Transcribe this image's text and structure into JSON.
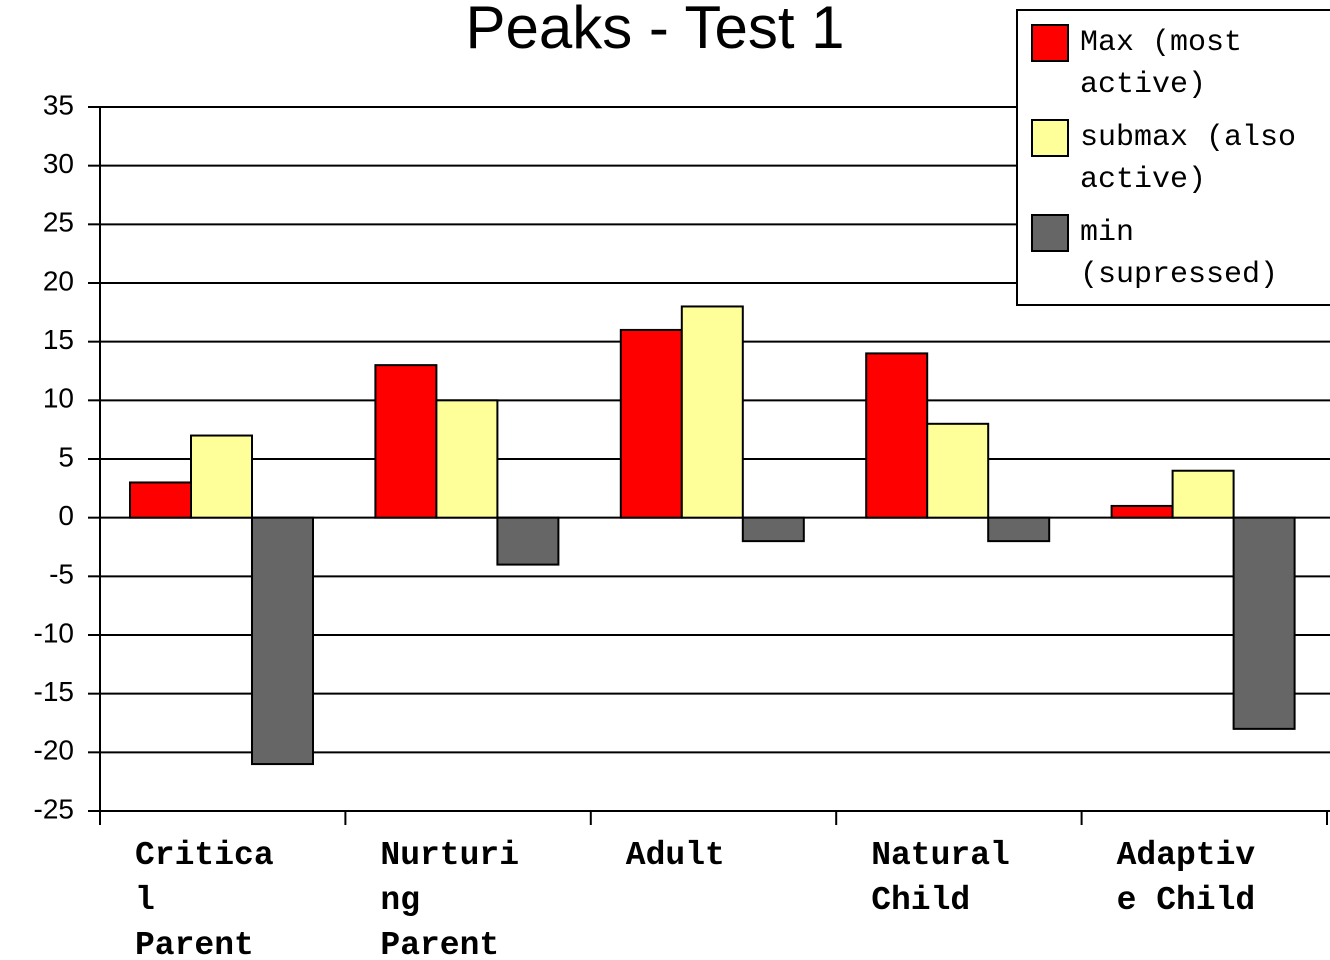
{
  "chart_data": {
    "type": "bar",
    "title": "Peaks - Test 1",
    "categories": [
      "Critical Parent",
      "Nurturing Parent",
      "Adult",
      "Natural Child",
      "Adaptive Child"
    ],
    "series": [
      {
        "name": "Max (most active)",
        "color": "#ff0000",
        "values": [
          3,
          13,
          16,
          14,
          1
        ]
      },
      {
        "name": "submax (also active)",
        "color": "#ffff99",
        "values": [
          7,
          10,
          18,
          8,
          4
        ]
      },
      {
        "name": "min (supressed)",
        "color": "#666666",
        "values": [
          -21,
          -4,
          -2,
          -2,
          -18
        ]
      }
    ],
    "ylim": [
      -25,
      35
    ],
    "yticks": [
      -25,
      -20,
      -15,
      -10,
      -5,
      0,
      5,
      10,
      15,
      20,
      25,
      30,
      35
    ],
    "grid": true,
    "legend": "top-right"
  }
}
